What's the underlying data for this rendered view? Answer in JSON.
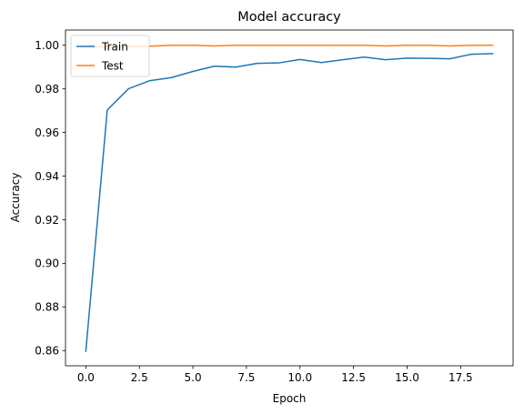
{
  "chart_data": {
    "type": "line",
    "title": "Model accuracy",
    "xlabel": "Epoch",
    "ylabel": "Accuracy",
    "x": [
      0,
      1,
      2,
      3,
      4,
      5,
      6,
      7,
      8,
      9,
      10,
      11,
      12,
      13,
      14,
      15,
      16,
      17,
      18,
      19
    ],
    "xlim": [
      -0.95,
      19.95
    ],
    "ylim": [
      0.853,
      1.007
    ],
    "xticks": [
      0.0,
      2.5,
      5.0,
      7.5,
      10.0,
      12.5,
      15.0,
      17.5
    ],
    "xtick_labels": [
      "0.0",
      "2.5",
      "5.0",
      "7.5",
      "10.0",
      "12.5",
      "15.0",
      "17.5"
    ],
    "yticks": [
      0.86,
      0.88,
      0.9,
      0.92,
      0.94,
      0.96,
      0.98,
      1.0
    ],
    "ytick_labels": [
      "0.86",
      "0.88",
      "0.90",
      "0.92",
      "0.94",
      "0.96",
      "0.98",
      "1.00"
    ],
    "grid": false,
    "legend_position": "top-left",
    "series": [
      {
        "name": "Train",
        "color": "#1f77b4",
        "values": [
          0.8597,
          0.9703,
          0.9801,
          0.9838,
          0.9852,
          0.988,
          0.9904,
          0.99,
          0.9917,
          0.9919,
          0.9935,
          0.9921,
          0.9934,
          0.9946,
          0.9934,
          0.9941,
          0.994,
          0.9938,
          0.9959,
          0.9962
        ]
      },
      {
        "name": "Test",
        "color": "#ff7f0e",
        "values": [
          0.9993,
          0.9993,
          0.9995,
          0.9996,
          1.0,
          1.0,
          0.9997,
          1.0,
          1.0,
          1.0,
          1.0,
          1.0,
          1.0,
          1.0,
          0.9997,
          1.0,
          1.0,
          0.9997,
          1.0,
          1.0
        ]
      }
    ]
  }
}
